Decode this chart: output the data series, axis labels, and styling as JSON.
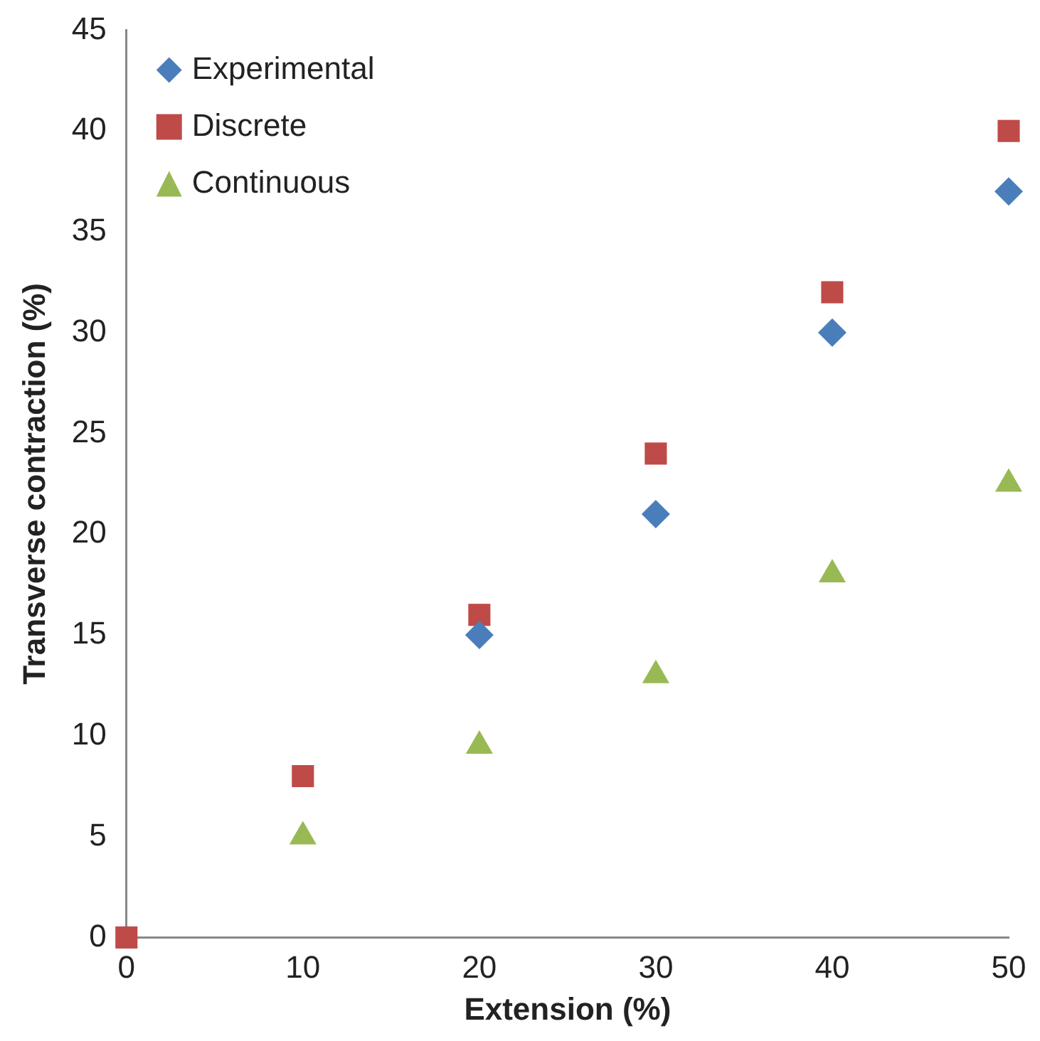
{
  "chart_data": {
    "type": "scatter",
    "xlabel": "Extension (%)",
    "ylabel": "Transverse contraction (%)",
    "x": [
      0,
      10,
      20,
      30,
      40,
      50
    ],
    "series": [
      {
        "name": "Experimental",
        "color": "#4a7ebb",
        "marker": "diamond",
        "values": [
          null,
          null,
          15,
          21,
          30,
          37
        ]
      },
      {
        "name": "Discrete",
        "color": "#be4b48",
        "marker": "square",
        "values": [
          0,
          8,
          16,
          24,
          32,
          40
        ]
      },
      {
        "name": "Continuous",
        "color": "#98b954",
        "marker": "triangle",
        "values": [
          null,
          5,
          9.5,
          13,
          18,
          22.5
        ]
      }
    ],
    "xlim": [
      0,
      50
    ],
    "xticks": [
      0,
      10,
      20,
      30,
      40,
      50
    ],
    "ylim": [
      0,
      45
    ],
    "yticks": [
      0,
      5,
      10,
      15,
      20,
      25,
      30,
      35,
      40,
      45
    ],
    "grid": false,
    "legend": "top left"
  }
}
